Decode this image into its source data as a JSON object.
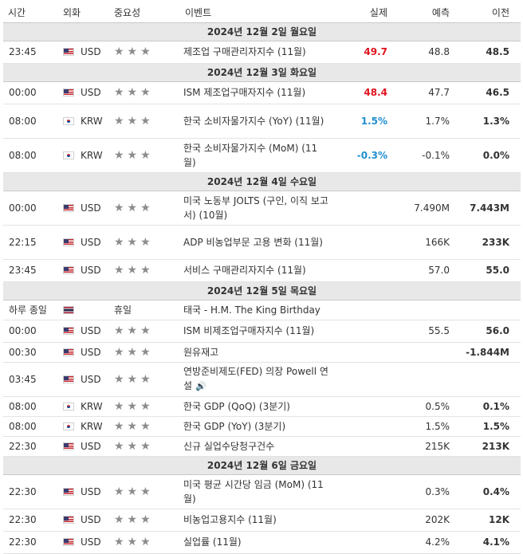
{
  "header": {
    "time": "시간",
    "currency": "외화",
    "importance": "중요성",
    "event": "이벤트",
    "actual": "실제",
    "forecast": "예측",
    "previous": "이전"
  },
  "groups": [
    {
      "date": "2024년 12월 2일 월요일",
      "rows": [
        {
          "time": "23:45",
          "flag": "us",
          "currency": "USD",
          "importance": "★★★",
          "event": "제조업 구매관리자지수 (11월)",
          "actual": "49.7",
          "actual_color": "red",
          "forecast": "48.8",
          "previous": "48.5"
        }
      ]
    },
    {
      "date": "2024년 12월 3일 화요일",
      "rows": [
        {
          "time": "00:00",
          "flag": "us",
          "currency": "USD",
          "importance": "★★★",
          "event": "ISM 제조업구매자지수 (11월)",
          "actual": "48.4",
          "actual_color": "red",
          "forecast": "47.7",
          "previous": "46.5"
        },
        {
          "time": "08:00",
          "flag": "kr",
          "currency": "KRW",
          "importance": "★★★",
          "event": "한국 소비자물가지수 (YoY) (11월)",
          "actual": "1.5%",
          "actual_color": "blue",
          "forecast": "1.7%",
          "previous": "1.3%"
        },
        {
          "time": "08:00",
          "flag": "kr",
          "currency": "KRW",
          "importance": "★★★",
          "event": "한국 소비자물가지수 (MoM) (11월)",
          "actual": "-0.3%",
          "actual_color": "blue",
          "forecast": "-0.1%",
          "previous": "0.0%"
        }
      ]
    },
    {
      "date": "2024년 12월 4일 수요일",
      "rows": [
        {
          "time": "00:00",
          "flag": "us",
          "currency": "USD",
          "importance": "★★★",
          "event": "미국 노동부 JOLTS (구인, 이직 보고서) (10월)",
          "actual": "",
          "forecast": "7.490M",
          "previous": "7.443M"
        },
        {
          "time": "22:15",
          "flag": "us",
          "currency": "USD",
          "importance": "★★★",
          "event": "ADP 비농업부문 고용 변화 (11월)",
          "actual": "",
          "forecast": "166K",
          "previous": "233K"
        },
        {
          "time": "23:45",
          "flag": "us",
          "currency": "USD",
          "importance": "★★★",
          "event": "서비스 구매관리자지수 (11월)",
          "actual": "",
          "forecast": "57.0",
          "previous": "55.0"
        }
      ]
    },
    {
      "date": "2024년 12월 5일 목요일",
      "rows": [
        {
          "time": "하루 종일",
          "flag": "th",
          "currency": "",
          "importance": "휴일",
          "event": "태국 - H.M. The King Birthday",
          "actual": "",
          "forecast": "",
          "previous": ""
        },
        {
          "time": "00:00",
          "flag": "us",
          "currency": "USD",
          "importance": "★★★",
          "event": "ISM 비제조업구매자지수 (11월)",
          "actual": "",
          "forecast": "55.5",
          "previous": "56.0"
        },
        {
          "time": "00:30",
          "flag": "us",
          "currency": "USD",
          "importance": "★★★",
          "event": "원유재고",
          "actual": "",
          "forecast": "",
          "previous": "-1.844M"
        },
        {
          "time": "03:45",
          "flag": "us",
          "currency": "USD",
          "importance": "★★★",
          "event": "연방준비제도(FED) 의장 Powell 연설",
          "speech": true,
          "actual": "",
          "forecast": "",
          "previous": ""
        },
        {
          "time": "08:00",
          "flag": "kr",
          "currency": "KRW",
          "importance": "★★★",
          "event": "한국 GDP (QoQ) (3분기)",
          "actual": "",
          "forecast": "0.5%",
          "previous": "0.1%"
        },
        {
          "time": "08:00",
          "flag": "kr",
          "currency": "KRW",
          "importance": "★★★",
          "event": "한국 GDP (YoY) (3분기)",
          "actual": "",
          "forecast": "1.5%",
          "previous": "1.5%"
        },
        {
          "time": "22:30",
          "flag": "us",
          "currency": "USD",
          "importance": "★★★",
          "event": "신규 실업수당청구건수",
          "actual": "",
          "forecast": "215K",
          "previous": "213K"
        }
      ]
    },
    {
      "date": "2024년 12월 6일 금요일",
      "rows": [
        {
          "time": "22:30",
          "flag": "us",
          "currency": "USD",
          "importance": "★★★",
          "event": "미국 평균 시간당 임금 (MoM) (11월)",
          "actual": "",
          "forecast": "0.3%",
          "previous": "0.4%"
        },
        {
          "time": "22:30",
          "flag": "us",
          "currency": "USD",
          "importance": "★★★",
          "event": "비농업고용지수 (11월)",
          "actual": "",
          "forecast": "202K",
          "previous": "12K"
        },
        {
          "time": "22:30",
          "flag": "us",
          "currency": "USD",
          "importance": "★★★",
          "event": "실업률 (11월)",
          "actual": "",
          "forecast": "4.2%",
          "previous": "4.1%"
        }
      ]
    }
  ]
}
